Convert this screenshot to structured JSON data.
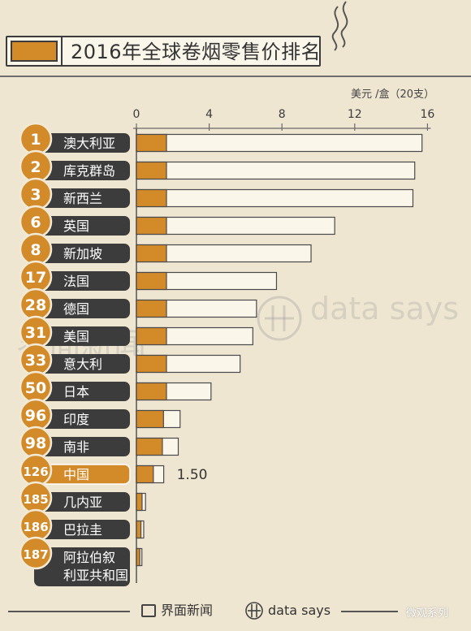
{
  "title": "2016年全球卷烟零售价排名",
  "unit": "美元 /盒（20支）",
  "colors": {
    "accent": "#d38a29",
    "bar_fill": "#fbf6ea",
    "dark_label": "#3c3c3c",
    "china_label": "#d38a29",
    "background": "#efe6d2"
  },
  "watermarks": [
    "界面新闻",
    "data says"
  ],
  "footer": {
    "brand1": "界面新闻",
    "brand2": "data says",
    "corner": "微观系列"
  },
  "chart_data": {
    "type": "bar",
    "orientation": "horizontal",
    "title": "2016年全球卷烟零售价排名",
    "ylabel": "美元 /盒（20支）",
    "xlim": [
      0,
      16
    ],
    "ticks": [
      "0",
      "4",
      "8",
      "12",
      "16"
    ],
    "ranks": [
      "1",
      "2",
      "3",
      "6",
      "8",
      "17",
      "28",
      "31",
      "33",
      "50",
      "96",
      "98",
      "126",
      "185",
      "186",
      "187"
    ],
    "categories": [
      "澳大利亚",
      "库克群岛",
      "新西兰",
      "英国",
      "新加坡",
      "法国",
      "德国",
      "美国",
      "意大利",
      "日本",
      "印度",
      "南非",
      "中国",
      "几内亚",
      "巴拉圭",
      "阿拉伯叙利亚共和国"
    ],
    "label_lines": [
      [
        "澳大利亚"
      ],
      [
        "库克群岛"
      ],
      [
        "新西兰"
      ],
      [
        "英国"
      ],
      [
        "新加坡"
      ],
      [
        "法国"
      ],
      [
        "德国"
      ],
      [
        "美国"
      ],
      [
        "意大利"
      ],
      [
        "日本"
      ],
      [
        "印度"
      ],
      [
        "南非"
      ],
      [
        "中国"
      ],
      [
        "几内亚"
      ],
      [
        "巴拉圭"
      ],
      [
        "阿拉伯叙",
        "利亚共和国"
      ]
    ],
    "values": [
      15.7,
      15.3,
      15.2,
      10.9,
      9.6,
      7.7,
      6.6,
      6.4,
      5.7,
      4.1,
      2.4,
      2.3,
      1.5,
      0.5,
      0.4,
      0.3
    ],
    "highlight": {
      "category": "中国",
      "label": "1.50"
    },
    "grid": false,
    "legend": "none"
  }
}
